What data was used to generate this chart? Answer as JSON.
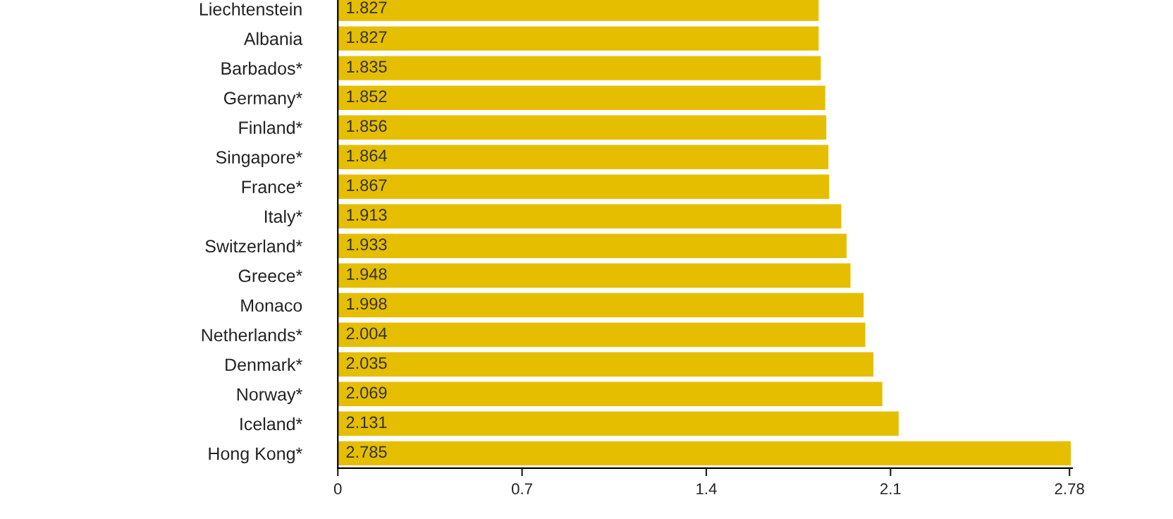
{
  "chart_data": {
    "type": "bar",
    "orientation": "horizontal",
    "categories": [
      "Liechtenstein",
      "Albania",
      "Barbados*",
      "Germany*",
      "Finland*",
      "Singapore*",
      "France*",
      "Italy*",
      "Switzerland*",
      "Greece*",
      "Monaco",
      "Netherlands*",
      "Denmark*",
      "Norway*",
      "Iceland*",
      "Hong Kong*"
    ],
    "values": [
      1.827,
      1.827,
      1.835,
      1.852,
      1.856,
      1.864,
      1.867,
      1.913,
      1.933,
      1.948,
      1.998,
      2.004,
      2.035,
      2.069,
      2.131,
      2.785
    ],
    "color": "#e6be00",
    "xlim": [
      0,
      2.79
    ],
    "xticks": [
      0,
      0.7,
      1.4,
      2.1,
      2.78
    ],
    "data_labels": true,
    "grid": false,
    "legend": false
  }
}
